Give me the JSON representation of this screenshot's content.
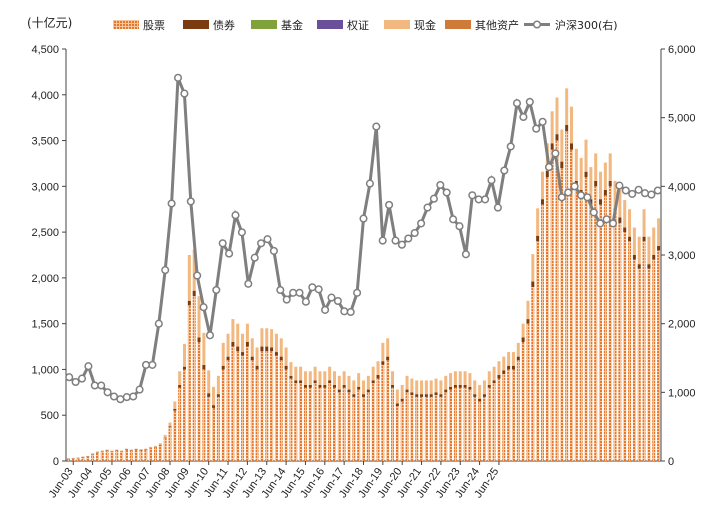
{
  "chart_data": {
    "type": "bar",
    "title": "",
    "ylabel": "(十亿元)",
    "y2label": "",
    "ylim": [
      0,
      4500
    ],
    "y2lim": [
      0,
      6000
    ],
    "yticks": [
      "0",
      "500",
      "1,000",
      "1,500",
      "2,000",
      "2,500",
      "3,000",
      "3,500",
      "4,000",
      "4,500"
    ],
    "y2ticks": [
      "0",
      "1,000",
      "2,000",
      "3,000",
      "4,000",
      "5,000",
      "6,000"
    ],
    "xtick_labels": [
      "Jun-03",
      "Jun-04",
      "Jun-05",
      "Jun-06",
      "Jun-07",
      "Jun-08",
      "Jun-09",
      "Jun-10",
      "Jun-11",
      "Jun-12",
      "Jun-13",
      "Jun-14",
      "Jun-15",
      "Jun-16",
      "Jun-17",
      "Jun-18",
      "Jun-19",
      "Jun-20",
      "Jun-21",
      "Jun-22",
      "Jun-23",
      "Jun-24",
      "Jun-25"
    ],
    "legend": [
      "股票",
      "债券",
      "基金",
      "权证",
      "现金",
      "其他资产",
      "沪深300(右)"
    ],
    "colors": {
      "stocks": "#e8772e",
      "bonds": "#7a3b10",
      "funds": "#7fa33a",
      "warrants": "#6a4f9a",
      "cash": "#f2b880",
      "other": "#d07a3a",
      "line": "#7f7f7f",
      "marker_fill": "#ffffff"
    },
    "series": [
      {
        "name": "股票",
        "values": [
          20,
          25,
          30,
          40,
          45,
          70,
          90,
          100,
          110,
          100,
          110,
          100,
          120,
          110,
          120,
          115,
          120,
          140,
          150,
          170,
          250,
          370,
          550,
          800,
          1000,
          1700,
          1800,
          1300,
          1000,
          700,
          580,
          700,
          1000,
          1100,
          1250,
          1200,
          1150,
          1250,
          1100,
          1000,
          1200,
          1200,
          1200,
          1150,
          1100,
          1000,
          900,
          850,
          850,
          800,
          800,
          850,
          800,
          800,
          850,
          800,
          750,
          800,
          750,
          700,
          780,
          700,
          750,
          850,
          900,
          1050,
          1100,
          800,
          600,
          650,
          750,
          720,
          700,
          700,
          700,
          700,
          720,
          700,
          750,
          780,
          800,
          800,
          800,
          780,
          700,
          650,
          700,
          800,
          850,
          900,
          950,
          1000,
          1000,
          1100,
          1300,
          1500,
          1900,
          2400,
          2800,
          3100,
          3400,
          3500,
          3200,
          3600,
          3400,
          3000,
          2900,
          3100,
          2800,
          3000,
          2800,
          2900,
          3000,
          2700,
          2600,
          2500,
          2400,
          2200,
          2100,
          2400,
          2100,
          2200,
          2300
        ]
      },
      {
        "name": "债券",
        "values": [
          5,
          5,
          5,
          5,
          5,
          5,
          5,
          5,
          5,
          5,
          5,
          5,
          5,
          5,
          5,
          5,
          5,
          5,
          5,
          5,
          5,
          10,
          20,
          30,
          30,
          50,
          60,
          50,
          50,
          40,
          30,
          30,
          40,
          40,
          50,
          50,
          40,
          50,
          40,
          40,
          50,
          50,
          40,
          40,
          40,
          40,
          30,
          30,
          30,
          30,
          30,
          30,
          30,
          30,
          30,
          30,
          30,
          30,
          30,
          30,
          30,
          30,
          30,
          30,
          40,
          40,
          40,
          30,
          30,
          30,
          30,
          30,
          30,
          30,
          30,
          30,
          30,
          30,
          30,
          30,
          30,
          30,
          30,
          30,
          30,
          30,
          30,
          30,
          30,
          40,
          40,
          40,
          40,
          40,
          50,
          50,
          60,
          60,
          60,
          70,
          70,
          70,
          70,
          70,
          70,
          60,
          60,
          60,
          60,
          60,
          60,
          60,
          60,
          60,
          60,
          50,
          50,
          50,
          50,
          50,
          50,
          50,
          50
        ]
      },
      {
        "name": "基金",
        "values": [
          0,
          0,
          0,
          0,
          0,
          0,
          0,
          0,
          0,
          0,
          0,
          0,
          0,
          0,
          0,
          0,
          0,
          0,
          0,
          0,
          0,
          0,
          0,
          0,
          0,
          0,
          0,
          0,
          0,
          0,
          0,
          0,
          0,
          0,
          0,
          0,
          0,
          0,
          0,
          0,
          0,
          0,
          0,
          0,
          0,
          0,
          0,
          0,
          0,
          0,
          0,
          0,
          0,
          0,
          0,
          0,
          0,
          0,
          0,
          0,
          0,
          0,
          0,
          0,
          0,
          0,
          0,
          0,
          0,
          0,
          0,
          0,
          0,
          0,
          0,
          0,
          0,
          0,
          0,
          0,
          0,
          0,
          0,
          0,
          0,
          0,
          0,
          0,
          0,
          0,
          0,
          0,
          0,
          0,
          0,
          0,
          0,
          0,
          0,
          0,
          0,
          0,
          0,
          0,
          0,
          0,
          0,
          0,
          0,
          0,
          0,
          0,
          0,
          0,
          0,
          0,
          0,
          0,
          0,
          0,
          0,
          0,
          0
        ]
      },
      {
        "name": "权证",
        "values": [
          0,
          0,
          0,
          0,
          0,
          0,
          0,
          0,
          0,
          0,
          0,
          0,
          0,
          0,
          0,
          0,
          0,
          0,
          0,
          0,
          0,
          0,
          0,
          0,
          0,
          0,
          0,
          0,
          0,
          0,
          0,
          0,
          0,
          0,
          0,
          0,
          0,
          0,
          0,
          0,
          0,
          0,
          0,
          0,
          0,
          0,
          0,
          0,
          0,
          0,
          0,
          0,
          0,
          0,
          0,
          0,
          0,
          0,
          0,
          0,
          0,
          0,
          0,
          0,
          0,
          0,
          0,
          0,
          0,
          0,
          0,
          0,
          0,
          0,
          0,
          0,
          0,
          0,
          0,
          0,
          0,
          0,
          0,
          0,
          0,
          0,
          0,
          0,
          0,
          0,
          0,
          0,
          0,
          0,
          0,
          0,
          0,
          0,
          0,
          0,
          0,
          0,
          0,
          0,
          0,
          0,
          0,
          0,
          0,
          0,
          0,
          0,
          0,
          0,
          0,
          0,
          0,
          0,
          0,
          0,
          0,
          0,
          0
        ]
      },
      {
        "name": "现金",
        "values": [
          5,
          5,
          5,
          5,
          5,
          10,
          10,
          10,
          10,
          10,
          10,
          10,
          10,
          10,
          10,
          10,
          10,
          10,
          10,
          20,
          30,
          40,
          80,
          150,
          250,
          500,
          450,
          450,
          350,
          250,
          200,
          200,
          250,
          250,
          250,
          250,
          200,
          200,
          200,
          200,
          200,
          200,
          200,
          200,
          200,
          200,
          150,
          150,
          150,
          150,
          150,
          150,
          150,
          150,
          150,
          150,
          150,
          150,
          150,
          150,
          150,
          150,
          150,
          150,
          150,
          200,
          200,
          150,
          150,
          150,
          150,
          150,
          150,
          150,
          150,
          150,
          150,
          150,
          150,
          150,
          150,
          150,
          150,
          150,
          150,
          150,
          150,
          150,
          150,
          150,
          150,
          150,
          150,
          150,
          150,
          200,
          300,
          300,
          300,
          300,
          350,
          400,
          350,
          400,
          400,
          350,
          350,
          350,
          350,
          300,
          300,
          300,
          300,
          300,
          300,
          300,
          300,
          300,
          300,
          300,
          300,
          300,
          300
        ]
      },
      {
        "name": "其他资产",
        "values": [
          0,
          0,
          0,
          0,
          0,
          0,
          0,
          0,
          0,
          0,
          0,
          0,
          0,
          0,
          0,
          0,
          0,
          0,
          0,
          0,
          0,
          0,
          0,
          0,
          0,
          0,
          0,
          0,
          0,
          0,
          0,
          0,
          0,
          0,
          0,
          0,
          0,
          0,
          0,
          0,
          0,
          0,
          0,
          0,
          0,
          0,
          0,
          0,
          0,
          0,
          0,
          0,
          0,
          0,
          0,
          0,
          0,
          0,
          0,
          0,
          0,
          0,
          0,
          0,
          0,
          0,
          0,
          0,
          0,
          0,
          0,
          0,
          0,
          0,
          0,
          0,
          0,
          0,
          0,
          0,
          0,
          0,
          0,
          0,
          0,
          0,
          0,
          0,
          0,
          0,
          0,
          0,
          0,
          0,
          0,
          0,
          0,
          0,
          0,
          0,
          0,
          0,
          0,
          0,
          0,
          0,
          0,
          0,
          0,
          0,
          0,
          0,
          0,
          0,
          0,
          0,
          0,
          0,
          0,
          0,
          0,
          0,
          0
        ]
      },
      {
        "name": "沪深300(右)",
        "axis": "right",
        "values": [
          1220,
          1150,
          1200,
          1380,
          1100,
          1100,
          1000,
          940,
          900,
          930,
          940,
          1040,
          1400,
          1400,
          2000,
          2780,
          3750,
          5580,
          5350,
          3780,
          2700,
          2240,
          1830,
          2490,
          3170,
          3020,
          3580,
          3330,
          2580,
          2960,
          3170,
          3230,
          3060,
          2490,
          2350,
          2450,
          2450,
          2320,
          2530,
          2500,
          2200,
          2380,
          2330,
          2180,
          2170,
          2450,
          3530,
          4040,
          4870,
          3210,
          3730,
          3210,
          3150,
          3240,
          3320,
          3460,
          3690,
          3820,
          4020,
          3910,
          3520,
          3420,
          3010,
          3870,
          3810,
          3810,
          4090,
          3690,
          4230,
          4580,
          5210,
          5010,
          5230,
          4840,
          4940,
          4280,
          4480,
          3840,
          3910,
          4000,
          3870,
          3840,
          3620,
          3460,
          3520,
          3460,
          4010,
          3940,
          3890,
          3950,
          3900,
          3880,
          3940
        ]
      }
    ]
  }
}
